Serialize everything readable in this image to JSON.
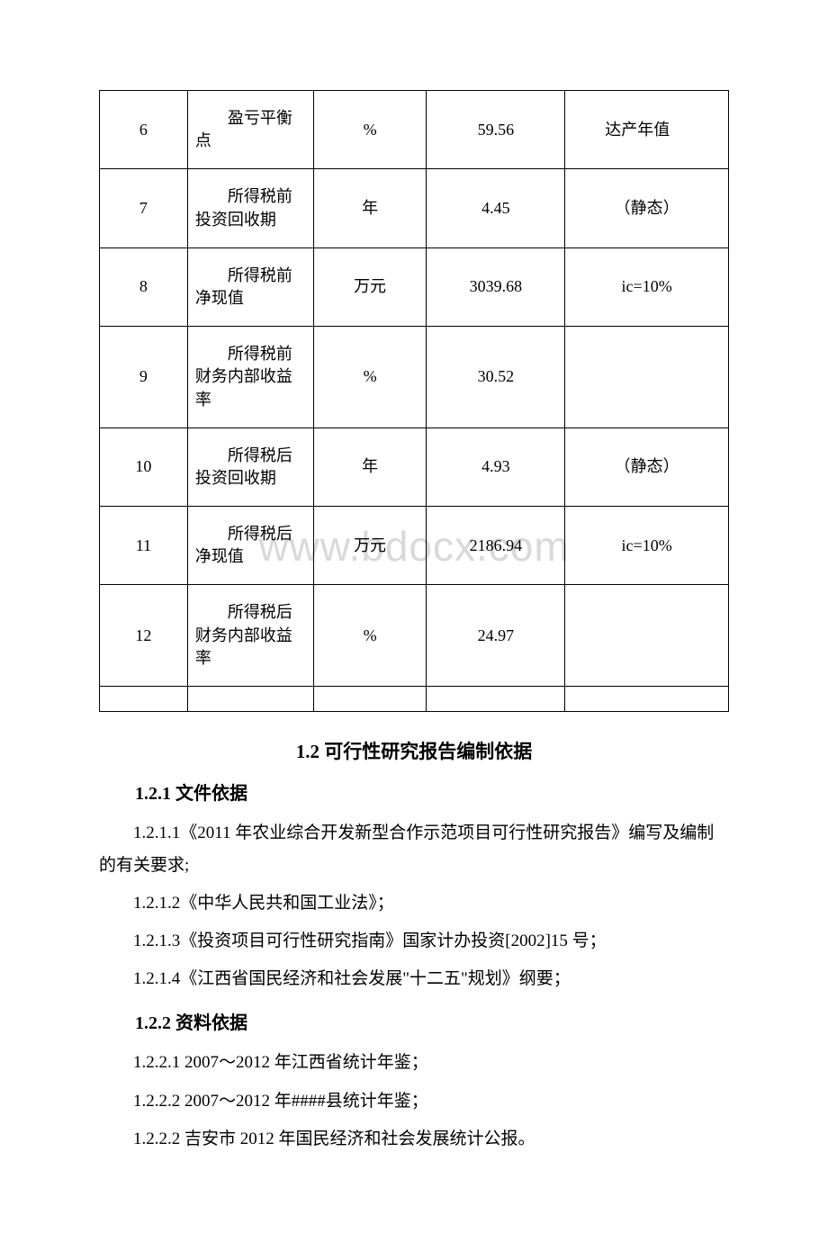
{
  "watermark": "www.bdocx.com",
  "table": {
    "columns_width": [
      "14%",
      "20%",
      "18%",
      "22%",
      "26%"
    ],
    "rows": [
      {
        "num": "6",
        "name": "盈亏平衡点",
        "unit": "%",
        "value": "59.56",
        "note": "达产年值",
        "note_indent": true
      },
      {
        "num": "7",
        "name": "所得税前投资回收期",
        "unit": "年",
        "value": "4.45",
        "note": "（静态）",
        "note_indent": false
      },
      {
        "num": "8",
        "name": "所得税前净现值",
        "unit": "万元",
        "value": "3039.68",
        "note": "ic=10%",
        "note_indent": false
      },
      {
        "num": "9",
        "name": "所得税前财务内部收益率",
        "unit": "%",
        "value": "30.52",
        "note": "",
        "note_indent": false
      },
      {
        "num": "10",
        "name": "所得税后投资回收期",
        "unit": "年",
        "value": "4.93",
        "note": "（静态）",
        "note_indent": false
      },
      {
        "num": "11",
        "name": "所得税后净现值",
        "unit": "万元",
        "value": "2186.94",
        "note": "ic=10%",
        "note_indent": false
      },
      {
        "num": "12",
        "name": "所得税后财务内部收益率",
        "unit": "%",
        "value": "24.97",
        "note": "",
        "note_indent": false
      }
    ]
  },
  "section": {
    "title": "1.2 可行性研究报告编制依据",
    "sub1": {
      "title": "1.2.1 文件依据",
      "items": [
        "1.2.1.1《2011 年农业综合开发新型合作示范项目可行性研究报告》编写及编制的有关要求;",
        "1.2.1.2《中华人民共和国工业法》；",
        "1.2.1.3《投资项目可行性研究指南》国家计办投资[2002]15 号；",
        "1.2.1.4《江西省国民经济和社会发展\"十二五\"规划》纲要；"
      ]
    },
    "sub2": {
      "title": "1.2.2 资料依据",
      "items": [
        "1.2.2.1 2007～2012 年江西省统计年鉴；",
        "1.2.2.2 2007～2012 年####县统计年鉴；",
        "1.2.2.2 吉安市 2012 年国民经济和社会发展统计公报。"
      ]
    }
  },
  "styling": {
    "body_font_size": 19,
    "table_font_size": 18,
    "heading_font_size": 21,
    "subheading_font_size": 20,
    "text_color": "#000000",
    "background_color": "#ffffff",
    "border_color": "#000000",
    "watermark_color": "#d9d9d9"
  }
}
